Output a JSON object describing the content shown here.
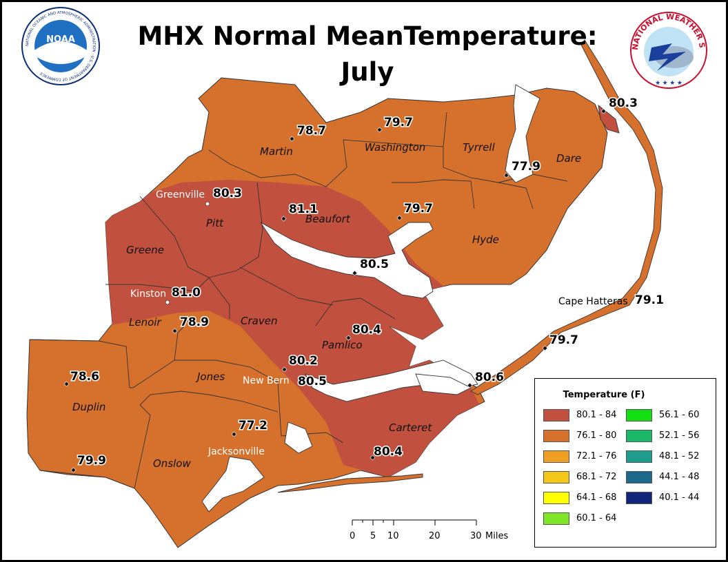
{
  "title": {
    "line1": "MHX Normal MeanTemperature:",
    "line2": "July"
  },
  "logos": {
    "noaa_ring": "NATIONAL OCEANIC AND ATMOSPHERIC ADMINISTRATION · U.S. DEPARTMENT OF COMMERCE",
    "noaa_center": "NOAA",
    "nws_ring": "NATIONAL WEATHER SERVICE"
  },
  "counties": {
    "martin": "Martin",
    "washington": "Washington",
    "tyrrell": "Tyrrell",
    "dare": "Dare",
    "pitt": "Pitt",
    "beaufort": "Beaufort",
    "hyde": "Hyde",
    "greene": "Greene",
    "lenoir": "Lenoir",
    "craven": "Craven",
    "pamlico": "Pamlico",
    "jones": "Jones",
    "duplin": "Duplin",
    "onslow": "Onslow",
    "carteret": "Carteret"
  },
  "cities": {
    "greenville": "Greenville",
    "kinston": "Kinston",
    "new_bern": "New Bern",
    "jacksonville": "Jacksonville",
    "cape_hatteras": "Cape Hatteras"
  },
  "stations": [
    {
      "id": "martin",
      "value": "78.7"
    },
    {
      "id": "washington",
      "value": "79.7"
    },
    {
      "id": "manteo",
      "value": "80.3"
    },
    {
      "id": "tyrrell",
      "value": "77.9"
    },
    {
      "id": "greenville",
      "value": "80.3"
    },
    {
      "id": "beaufort",
      "value": "81.1"
    },
    {
      "id": "hyde",
      "value": "79.7"
    },
    {
      "id": "pamlico-river",
      "value": "80.5"
    },
    {
      "id": "kinston",
      "value": "81.0"
    },
    {
      "id": "lenoir",
      "value": "78.9"
    },
    {
      "id": "pamlico",
      "value": "80.4"
    },
    {
      "id": "cape-hatteras",
      "value": "79.1"
    },
    {
      "id": "ocracoke",
      "value": "79.7"
    },
    {
      "id": "craven",
      "value": "80.2"
    },
    {
      "id": "new-bern",
      "value": "80.5"
    },
    {
      "id": "duplin-north",
      "value": "78.6"
    },
    {
      "id": "cedar-island",
      "value": "80.6"
    },
    {
      "id": "jones",
      "value": "77.2"
    },
    {
      "id": "morehead",
      "value": "80.4"
    },
    {
      "id": "duplin-south",
      "value": "79.9"
    }
  ],
  "legend": {
    "title": "Temperature (F)",
    "items": [
      {
        "label": "80.1 - 84",
        "color": "#c1503e"
      },
      {
        "label": "76.1 - 80",
        "color": "#d6712d"
      },
      {
        "label": "72.1 - 76",
        "color": "#efa023"
      },
      {
        "label": "68.1 - 72",
        "color": "#f4c618"
      },
      {
        "label": "64.1 - 68",
        "color": "#ffff00"
      },
      {
        "label": "60.1 - 64",
        "color": "#7ee626"
      },
      {
        "label": "56.1 - 60",
        "color": "#12e012"
      },
      {
        "label": "52.1 - 56",
        "color": "#1bb86a"
      },
      {
        "label": "48.1 - 52",
        "color": "#1e9c8e"
      },
      {
        "label": "44.1 - 48",
        "color": "#1b6a8e"
      },
      {
        "label": "40.1 - 44",
        "color": "#13257a"
      }
    ]
  },
  "scale": {
    "ticks": [
      "0",
      "5",
      "10",
      "20",
      "30"
    ],
    "unit": "Miles"
  },
  "colors": {
    "warm": "#c1503e",
    "normal": "#d6712d",
    "border": "#333333",
    "water": "#ffffff"
  }
}
